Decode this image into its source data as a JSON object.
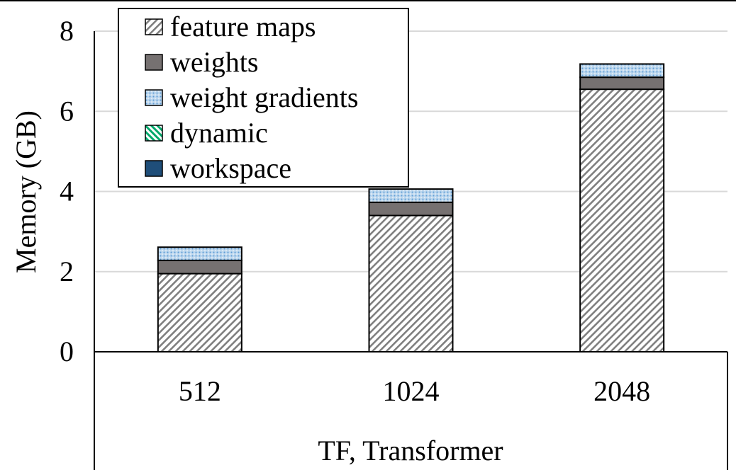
{
  "chart_data": {
    "type": "bar",
    "stacked": true,
    "title": "",
    "xlabel": "TF, Transformer",
    "ylabel": "Memory (GB)",
    "ylim": [
      0,
      8
    ],
    "yticks": [
      0,
      2,
      4,
      6,
      8
    ],
    "grid": true,
    "legend_position": "top-left",
    "categories": [
      "512",
      "1024",
      "2048"
    ],
    "series": [
      {
        "name": "feature maps",
        "values": [
          1.95,
          3.4,
          6.55
        ],
        "color": "#bfbfbf",
        "pattern": "diagonal-hatch"
      },
      {
        "name": "weights",
        "values": [
          0.33,
          0.33,
          0.3
        ],
        "color": "#767171",
        "pattern": "solid"
      },
      {
        "name": "weight gradients",
        "values": [
          0.33,
          0.33,
          0.33
        ],
        "color": "#9dc3e6",
        "pattern": "dots"
      },
      {
        "name": "dynamic",
        "values": [
          0,
          0,
          0
        ],
        "color": "#00b050",
        "pattern": "diagonal-stripe"
      },
      {
        "name": "workspace",
        "values": [
          0,
          0,
          0
        ],
        "color": "#1f4e79",
        "pattern": "solid"
      }
    ]
  }
}
